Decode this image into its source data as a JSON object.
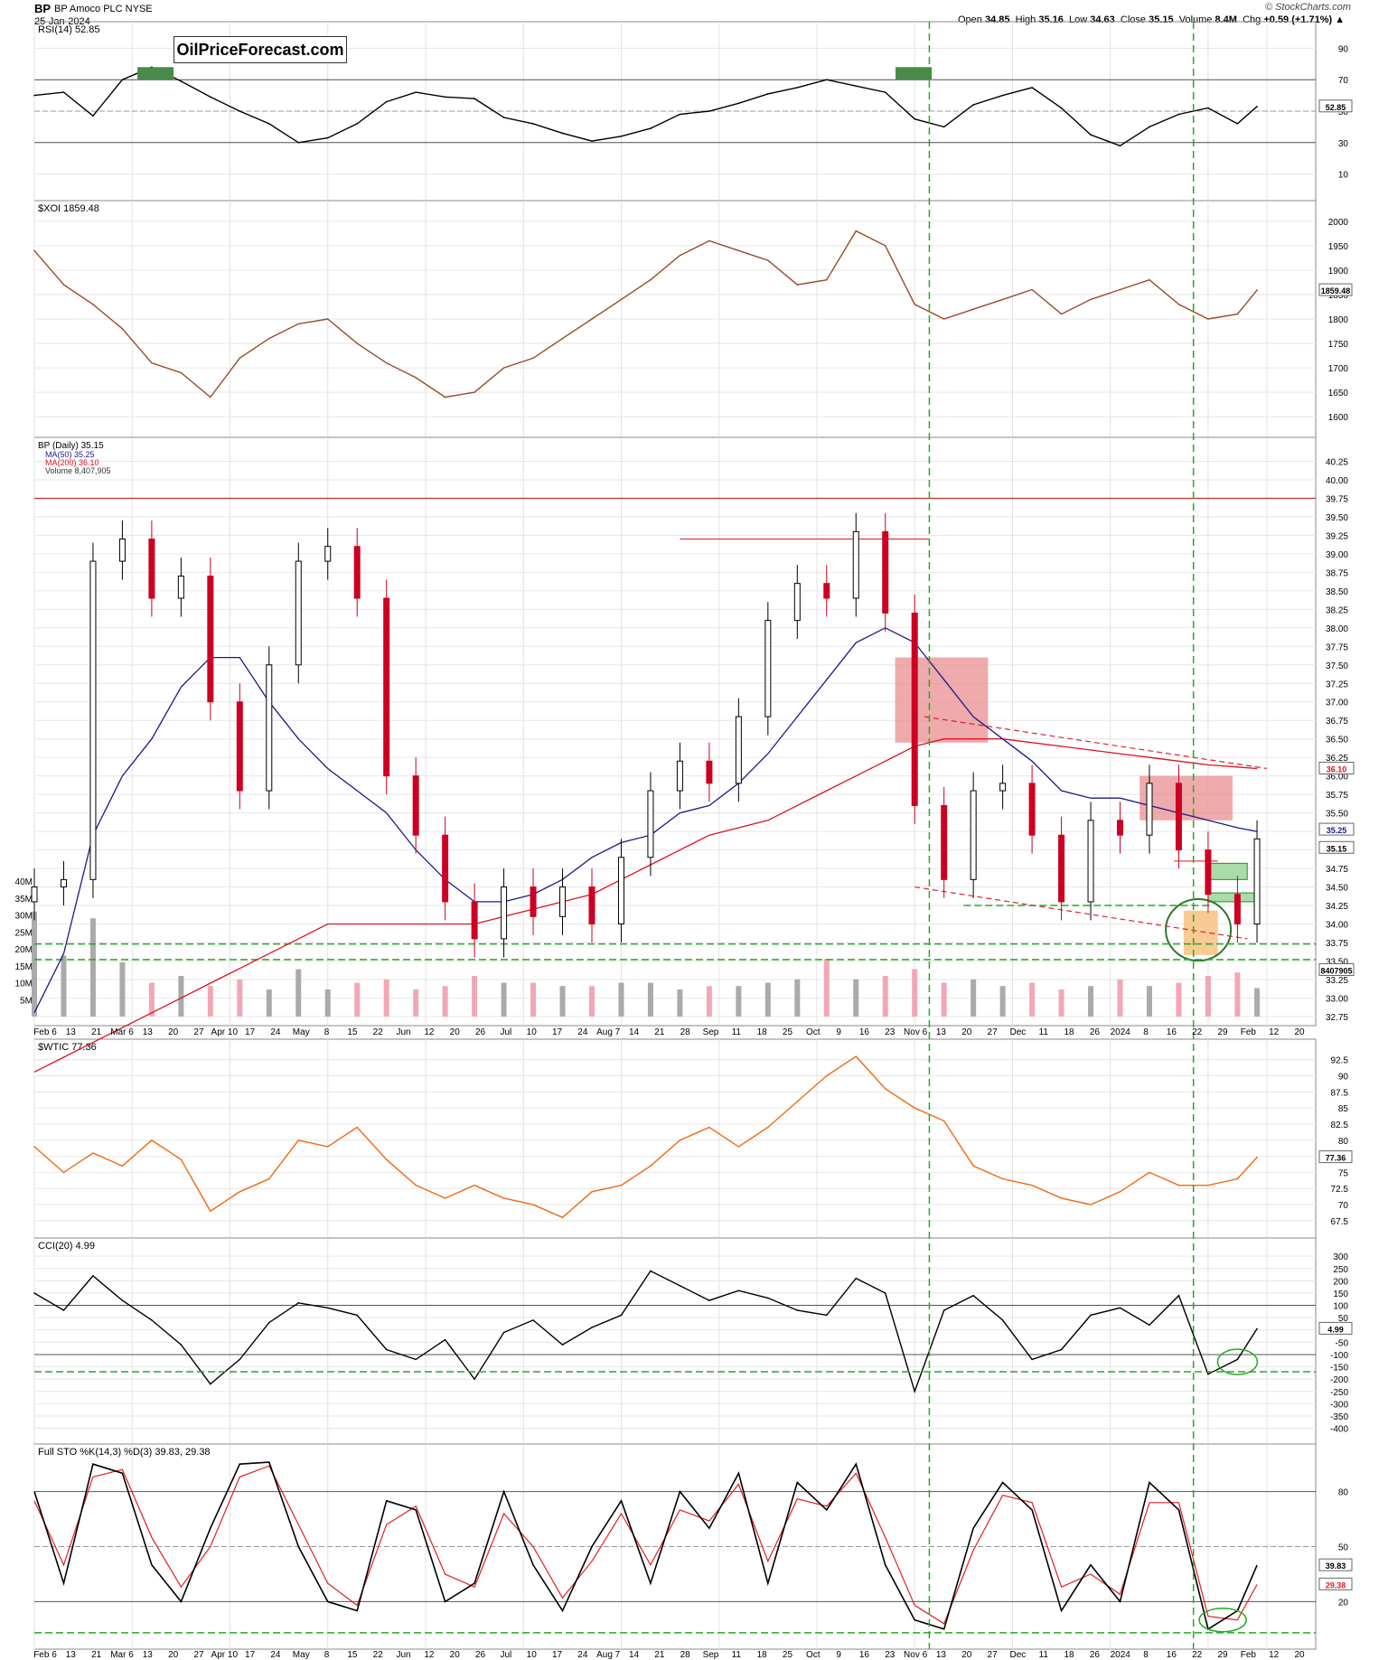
{
  "header": {
    "symbol": "BP",
    "company": "BP Amoco PLC NYSE",
    "date": "25-Jan-2024",
    "open_label": "Open",
    "open": "34.85",
    "high_label": "High",
    "high": "35.16",
    "low_label": "Low",
    "low": "34.63",
    "close_label": "Close",
    "close": "35.15",
    "volume_label": "Volume",
    "volume": "8.4M",
    "chg_label": "Chg",
    "chg": "+0.59 (+1.71%)",
    "chg_arrow": "▲",
    "credit": "© StockCharts.com",
    "watermark": "OilPriceForecast.com"
  },
  "colors": {
    "up": "#000000",
    "down": "#cc0022",
    "ma50": "#1a1a8c",
    "ma200": "#dd1122",
    "xoi": "#9b4a2a",
    "wtic": "#ee6a10",
    "guide": "#22aa22",
    "zone_red": "#e88888",
    "zone_green": "#a9dca9",
    "zone_orange": "#f6be7a",
    "vol_up": "#aaaaaa",
    "vol_down": "#f2a7b4"
  },
  "chart_data": [
    {
      "type": "line",
      "title": "RSI(14) 52.85",
      "yticks": [
        90,
        70,
        50,
        30,
        10
      ],
      "ylim": [
        0,
        100
      ],
      "last_value": "52.85",
      "ref_lines": [
        70,
        50,
        30
      ],
      "x": [
        0,
        6,
        12,
        18,
        24,
        30,
        36,
        42,
        48,
        54,
        60,
        66,
        72,
        78,
        84,
        90,
        96,
        102,
        108,
        114,
        120,
        126,
        132,
        138,
        144,
        150,
        156,
        162,
        168,
        174,
        180,
        186,
        192,
        198,
        204,
        210,
        216,
        222,
        228,
        234,
        240,
        246,
        250
      ],
      "values": [
        60,
        62,
        47,
        70,
        78,
        69,
        59,
        50,
        42,
        30,
        33,
        42,
        56,
        62,
        59,
        58,
        46,
        42,
        36,
        31,
        34,
        39,
        48,
        50,
        55,
        61,
        65,
        70,
        66,
        62,
        45,
        40,
        54,
        60,
        65,
        52,
        35,
        28,
        40,
        48,
        52,
        42,
        53
      ]
    },
    {
      "type": "line",
      "title": "$XOI 1859.48",
      "yticks": [
        2000,
        1950,
        1900,
        1850,
        1800,
        1750,
        1700,
        1650,
        1600
      ],
      "ylim": [
        1580,
        2020
      ],
      "last_value": "1859.48",
      "x": [
        0,
        6,
        12,
        18,
        24,
        30,
        36,
        42,
        48,
        54,
        60,
        66,
        72,
        78,
        84,
        90,
        96,
        102,
        108,
        114,
        120,
        126,
        132,
        138,
        144,
        150,
        156,
        162,
        168,
        174,
        180,
        186,
        192,
        198,
        204,
        210,
        216,
        222,
        228,
        234,
        240,
        246,
        250
      ],
      "values": [
        1940,
        1870,
        1830,
        1780,
        1710,
        1690,
        1640,
        1720,
        1760,
        1790,
        1800,
        1750,
        1710,
        1680,
        1640,
        1650,
        1700,
        1720,
        1760,
        1800,
        1840,
        1880,
        1930,
        1960,
        1940,
        1920,
        1870,
        1880,
        1980,
        1950,
        1830,
        1800,
        1820,
        1840,
        1860,
        1810,
        1840,
        1860,
        1880,
        1830,
        1800,
        1810,
        1859
      ]
    },
    {
      "type": "candlestick",
      "title": "BP (Daily) 35.15",
      "legend": [
        "MA(50) 35.25",
        "MA(200) 36.10",
        "Volume 8,407,905"
      ],
      "yticks": [
        40.25,
        40.0,
        39.75,
        39.5,
        39.25,
        39.0,
        38.75,
        38.5,
        38.25,
        38.0,
        37.75,
        37.5,
        37.25,
        37.0,
        36.75,
        36.5,
        36.25,
        36.0,
        35.75,
        35.5,
        35.25,
        35.0,
        34.75,
        34.5,
        34.25,
        34.0,
        33.75,
        33.5,
        33.25,
        33.0,
        32.75
      ],
      "ylim": [
        32.7,
        40.5
      ],
      "vol_ticks": [
        "40M",
        "35M",
        "30M",
        "25M",
        "20M",
        "15M",
        "10M",
        "5M"
      ],
      "price_labels": [
        "36.10",
        "35.25",
        "35.15",
        "8407905"
      ],
      "resistance_line": 39.75,
      "guide_lines": [
        33.73,
        33.52
      ],
      "x": [
        0,
        6,
        12,
        18,
        24,
        30,
        36,
        42,
        48,
        54,
        60,
        66,
        72,
        78,
        84,
        90,
        96,
        102,
        108,
        114,
        120,
        126,
        132,
        138,
        144,
        150,
        156,
        162,
        168,
        174,
        180,
        186,
        192,
        198,
        204,
        210,
        216,
        222,
        228,
        234,
        240,
        246,
        250
      ],
      "close": [
        34.5,
        34.6,
        38.9,
        39.2,
        38.4,
        38.7,
        37.0,
        35.8,
        37.5,
        38.9,
        39.1,
        38.4,
        36.0,
        35.2,
        34.3,
        33.8,
        34.5,
        34.1,
        34.5,
        34.0,
        34.9,
        35.8,
        36.2,
        35.9,
        36.8,
        38.1,
        38.6,
        38.4,
        39.3,
        38.2,
        35.6,
        34.6,
        35.8,
        35.9,
        35.2,
        34.3,
        35.4,
        35.2,
        35.9,
        35.0,
        34.4,
        34.0,
        35.15
      ],
      "ma50": [
        32.8,
        33.6,
        35.2,
        36.0,
        36.5,
        37.2,
        37.6,
        37.6,
        37.0,
        36.5,
        36.1,
        35.8,
        35.5,
        35.0,
        34.6,
        34.3,
        34.3,
        34.4,
        34.6,
        34.9,
        35.1,
        35.2,
        35.5,
        35.6,
        35.9,
        36.3,
        36.8,
        37.3,
        37.8,
        38.0,
        37.8,
        37.3,
        36.8,
        36.5,
        36.2,
        35.8,
        35.7,
        35.7,
        35.6,
        35.5,
        35.4,
        35.3,
        35.25
      ],
      "ma200": [
        32.0,
        32.2,
        32.4,
        32.6,
        32.8,
        33.0,
        33.2,
        33.4,
        33.6,
        33.8,
        34.0,
        34.0,
        34.0,
        34.0,
        34.0,
        34.0,
        34.1,
        34.2,
        34.3,
        34.4,
        34.6,
        34.8,
        35.0,
        35.2,
        35.3,
        35.4,
        35.6,
        35.8,
        36.0,
        36.2,
        36.4,
        36.5,
        36.5,
        36.5,
        36.45,
        36.4,
        36.35,
        36.3,
        36.25,
        36.2,
        36.15,
        36.12,
        36.1
      ],
      "volume_m": [
        31,
        18,
        29,
        16,
        10,
        12,
        9,
        11,
        8,
        14,
        8,
        10,
        11,
        8,
        9,
        12,
        10,
        10,
        9,
        9,
        10,
        10,
        8,
        9,
        9,
        10,
        11,
        17,
        11,
        12,
        14,
        10,
        11,
        9,
        10,
        8,
        9,
        11,
        9,
        10,
        12,
        13,
        8.4
      ]
    },
    {
      "type": "line",
      "title": "$WTIC 77.36",
      "yticks": [
        92.5,
        90.0,
        87.5,
        85.0,
        82.5,
        80.0,
        77.5,
        75.0,
        72.5,
        70.0,
        67.5
      ],
      "ylim": [
        66.5,
        94.0
      ],
      "last_value": "77.36",
      "x": [
        0,
        6,
        12,
        18,
        24,
        30,
        36,
        42,
        48,
        54,
        60,
        66,
        72,
        78,
        84,
        90,
        96,
        102,
        108,
        114,
        120,
        126,
        132,
        138,
        144,
        150,
        156,
        162,
        168,
        174,
        180,
        186,
        192,
        198,
        204,
        210,
        216,
        222,
        228,
        234,
        240,
        246,
        250
      ],
      "values": [
        79,
        75,
        78,
        76,
        80,
        77,
        69,
        72,
        74,
        80,
        79,
        82,
        77,
        73,
        71,
        73,
        71,
        70,
        68,
        72,
        73,
        76,
        80,
        82,
        79,
        82,
        86,
        90,
        93,
        88,
        85,
        83,
        76,
        74,
        73,
        71,
        70,
        72,
        75,
        73,
        73,
        74,
        77.36
      ]
    },
    {
      "type": "line",
      "title": "CCI(20) 4.99",
      "yticks": [
        300,
        250,
        200,
        150,
        100,
        50,
        0,
        -50,
        -100,
        -150,
        -200,
        -250,
        -300,
        -350,
        -400
      ],
      "ylim": [
        -420,
        330
      ],
      "last_value": "4.99",
      "ref_lines": [
        100,
        -100
      ],
      "x": [
        0,
        6,
        12,
        18,
        24,
        30,
        36,
        42,
        48,
        54,
        60,
        66,
        72,
        78,
        84,
        90,
        96,
        102,
        108,
        114,
        120,
        126,
        132,
        138,
        144,
        150,
        156,
        162,
        168,
        174,
        180,
        186,
        192,
        198,
        204,
        210,
        216,
        222,
        228,
        234,
        240,
        246,
        250
      ],
      "values": [
        150,
        80,
        220,
        120,
        40,
        -60,
        -220,
        -120,
        30,
        110,
        90,
        60,
        -80,
        -120,
        -40,
        -200,
        -10,
        40,
        -60,
        10,
        60,
        240,
        180,
        120,
        160,
        130,
        80,
        60,
        210,
        150,
        -250,
        80,
        140,
        40,
        -120,
        -80,
        60,
        90,
        20,
        140,
        -180,
        -120,
        5
      ]
    },
    {
      "type": "line",
      "title": "Full STO %K(14,3) %D(3) 39.83, 29.38",
      "series": [
        {
          "name": "%K",
          "last": "39.83"
        },
        {
          "name": "%D",
          "last": "29.38"
        }
      ],
      "yticks": [
        80,
        50,
        20
      ],
      "ylim": [
        0,
        100
      ],
      "ref_lines": [
        80,
        50,
        20
      ],
      "x": [
        0,
        6,
        12,
        18,
        24,
        30,
        36,
        42,
        48,
        54,
        60,
        66,
        72,
        78,
        84,
        90,
        96,
        102,
        108,
        114,
        120,
        126,
        132,
        138,
        144,
        150,
        156,
        162,
        168,
        174,
        180,
        186,
        192,
        198,
        204,
        210,
        216,
        222,
        228,
        234,
        240,
        246,
        250
      ],
      "k": [
        80,
        30,
        95,
        90,
        40,
        20,
        60,
        95,
        96,
        50,
        20,
        15,
        75,
        70,
        20,
        30,
        80,
        40,
        15,
        50,
        75,
        30,
        80,
        60,
        90,
        30,
        85,
        70,
        95,
        40,
        10,
        5,
        60,
        85,
        70,
        15,
        40,
        20,
        85,
        70,
        5,
        15,
        39.83
      ],
      "d": [
        75,
        40,
        88,
        92,
        55,
        28,
        50,
        88,
        94,
        62,
        30,
        18,
        62,
        72,
        35,
        28,
        68,
        50,
        22,
        42,
        68,
        40,
        70,
        64,
        84,
        42,
        76,
        72,
        90,
        55,
        18,
        8,
        48,
        78,
        74,
        28,
        35,
        24,
        74,
        74,
        12,
        10,
        29.38
      ]
    }
  ],
  "x_axis": {
    "labels_mid": [
      "Feb 6",
      "13",
      "21",
      "Mar 6",
      "13",
      "20",
      "27",
      "Apr 10",
      "17",
      "24",
      "May",
      "8",
      "15",
      "22",
      "Jun",
      "12",
      "20",
      "26",
      "Jul",
      "10",
      "17",
      "24",
      "Aug 7",
      "14",
      "21",
      "28",
      "Sep",
      "11",
      "18",
      "25",
      "Oct",
      "9",
      "16",
      "23",
      "Nov 6",
      "13",
      "20",
      "27",
      "Dec",
      "11",
      "18",
      "26",
      "2024",
      "8",
      "16",
      "22",
      "29",
      "Feb",
      "12",
      "20"
    ],
    "labels_bot": [
      "Feb 6",
      "13",
      "21",
      "Mar 6",
      "13",
      "20",
      "27",
      "Apr 10",
      "17",
      "24",
      "May",
      "8",
      "15",
      "22",
      "Jun",
      "12",
      "20",
      "26",
      "Jul",
      "10",
      "17",
      "24",
      "Aug 7",
      "14",
      "21",
      "28",
      "Sep",
      "11",
      "18",
      "25",
      "Oct",
      "9",
      "16",
      "23",
      "Nov 6",
      "13",
      "20",
      "27",
      "Dec",
      "11",
      "18",
      "26",
      "2024",
      "8",
      "16",
      "22",
      "29",
      "Feb",
      "12",
      "20"
    ],
    "highlight_dates": [
      "Nov 6",
      "16"
    ]
  }
}
